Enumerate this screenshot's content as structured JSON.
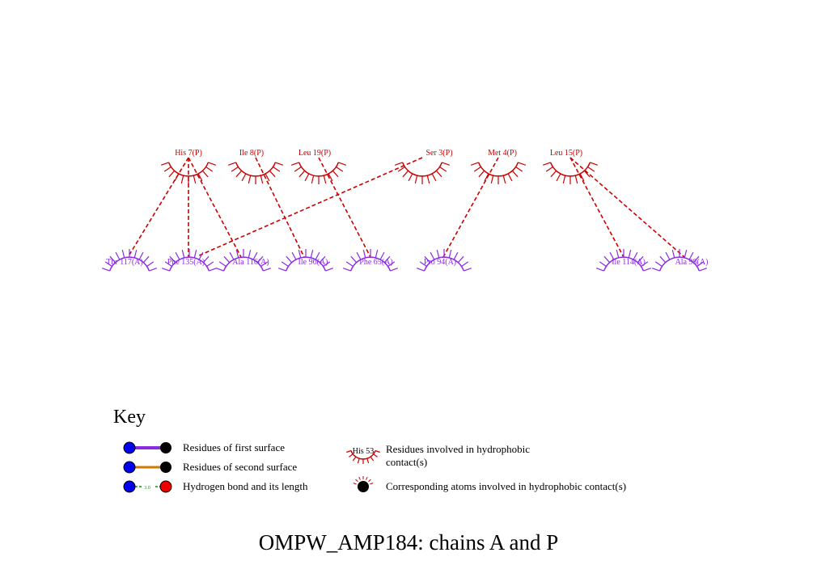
{
  "colors": {
    "chain_p": "#cc0000",
    "chain_a": "#8a2be2",
    "contact_line": "#cc0000",
    "first_surface_bond": "#8a2be2",
    "second_surface_bond": "#cc7a00",
    "hbond": "#009900",
    "atom_blue": "#0000ee",
    "atom_black": "#000000",
    "atom_red": "#ee0000",
    "text": "#000000"
  },
  "residues_p": [
    {
      "id": "his7",
      "label": "His 7(P)"
    },
    {
      "id": "ile8",
      "label": "Ile 8(P)"
    },
    {
      "id": "leu19",
      "label": "Leu 19(P)"
    },
    {
      "id": "ser3",
      "label": "Ser 3(P)"
    },
    {
      "id": "met4",
      "label": "Met 4(P)"
    },
    {
      "id": "leu15",
      "label": "Leu 15(P)"
    }
  ],
  "residues_a": [
    {
      "id": "thr117",
      "label": "Thr 117(A)"
    },
    {
      "id": "phe135",
      "label": "Phe 135(A)"
    },
    {
      "id": "ala116",
      "label": "Ala 116(A)"
    },
    {
      "id": "ile96",
      "label": "Ile 96(A)"
    },
    {
      "id": "phe65",
      "label": "Phe 65(A)"
    },
    {
      "id": "pro94",
      "label": "Pro 94(A)"
    },
    {
      "id": "ile114",
      "label": "Ile 114(A)"
    },
    {
      "id": "ala98",
      "label": "Ala 98(A)"
    }
  ],
  "contacts": [
    [
      "his7",
      "thr117"
    ],
    [
      "his7",
      "phe135"
    ],
    [
      "his7",
      "ala116"
    ],
    [
      "ile8",
      "ile96"
    ],
    [
      "leu19",
      "phe65"
    ],
    [
      "ser3",
      "phe135"
    ],
    [
      "met4",
      "pro94"
    ],
    [
      "leu15",
      "ile114"
    ],
    [
      "leu15",
      "ala98"
    ]
  ],
  "key": {
    "title": "Key",
    "first_surface": "Residues of first surface",
    "second_surface": "Residues of second surface",
    "hbond": "Hydrogen bond and its length",
    "hbond_length": "3.0",
    "hydrophobic_example": "His 53",
    "hydrophobic_line1": "Residues involved in hydrophobic",
    "hydrophobic_line2": "contact(s)",
    "atoms": "Corresponding atoms involved in hydrophobic contact(s)"
  },
  "footer": {
    "title": "OMPW_AMP184: chains A and P"
  }
}
